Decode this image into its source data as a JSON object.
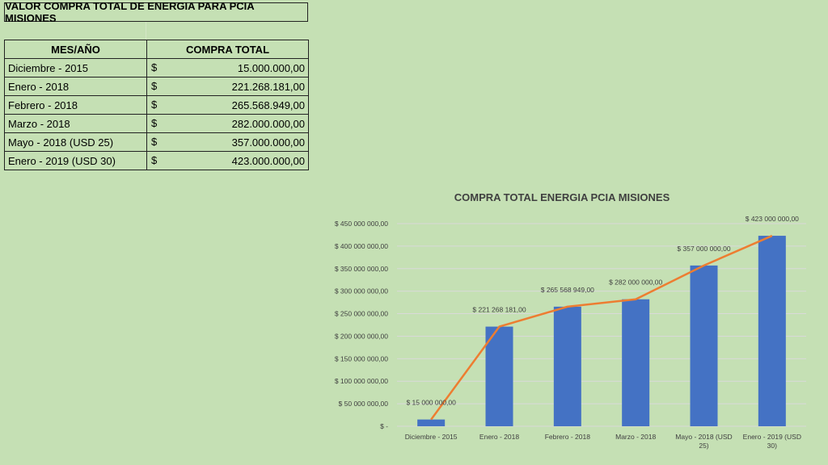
{
  "table": {
    "title": "VALOR COMPRA TOTAL DE ENERGIA PARA PCIA MISIONES",
    "headers": [
      "MES/AÑO",
      "COMPRA TOTAL"
    ],
    "currency_symbol": "$",
    "rows": [
      {
        "mes": "Diciembre - 2015",
        "total": "15.000.000,00"
      },
      {
        "mes": "Enero - 2018",
        "total": "221.268.181,00"
      },
      {
        "mes": "Febrero - 2018",
        "total": "265.568.949,00"
      },
      {
        "mes": "Marzo - 2018",
        "total": "282.000.000,00"
      },
      {
        "mes": "Mayo - 2018 (USD 25)",
        "total": "357.000.000,00"
      },
      {
        "mes": "Enero - 2019 (USD 30)",
        "total": "423.000.000,00"
      }
    ]
  },
  "chart_data": {
    "type": "bar",
    "title": "COMPRA TOTAL ENERGIA PCIA MISIONES",
    "categories": [
      [
        "Diciembre - 2015"
      ],
      [
        "Enero - 2018"
      ],
      [
        "Febrero - 2018"
      ],
      [
        "Marzo - 2018"
      ],
      [
        "Mayo - 2018 (USD",
        "25)"
      ],
      [
        "Enero - 2019 (USD",
        "30)"
      ]
    ],
    "values": [
      15000000,
      221268181,
      265568949,
      282000000,
      357000000,
      423000000
    ],
    "data_labels": [
      "$ 15 000 000,00",
      "$ 221 268 181,00",
      "$ 265 568 949,00",
      "$ 282 000 000,00",
      "$ 357 000 000,00",
      "$ 423 000 000,00"
    ],
    "overlay_line": true,
    "ylim": [
      0,
      450000000
    ],
    "yticks": [
      0,
      50000000,
      100000000,
      150000000,
      200000000,
      250000000,
      300000000,
      350000000,
      400000000,
      450000000
    ],
    "ytick_labels": [
      "$ -",
      "$ 50 000 000,00",
      "$ 100 000 000,00",
      "$ 150 000 000,00",
      "$ 200 000 000,00",
      "$ 250 000 000,00",
      "$ 300 000 000,00",
      "$ 350 000 000,00",
      "$ 400 000 000,00",
      "$ 450 000 000,00"
    ],
    "grid": true,
    "colors": {
      "bar": "#4472c4",
      "line": "#ed7d31",
      "grid": "#d9d9d9",
      "text": "#404040"
    }
  }
}
